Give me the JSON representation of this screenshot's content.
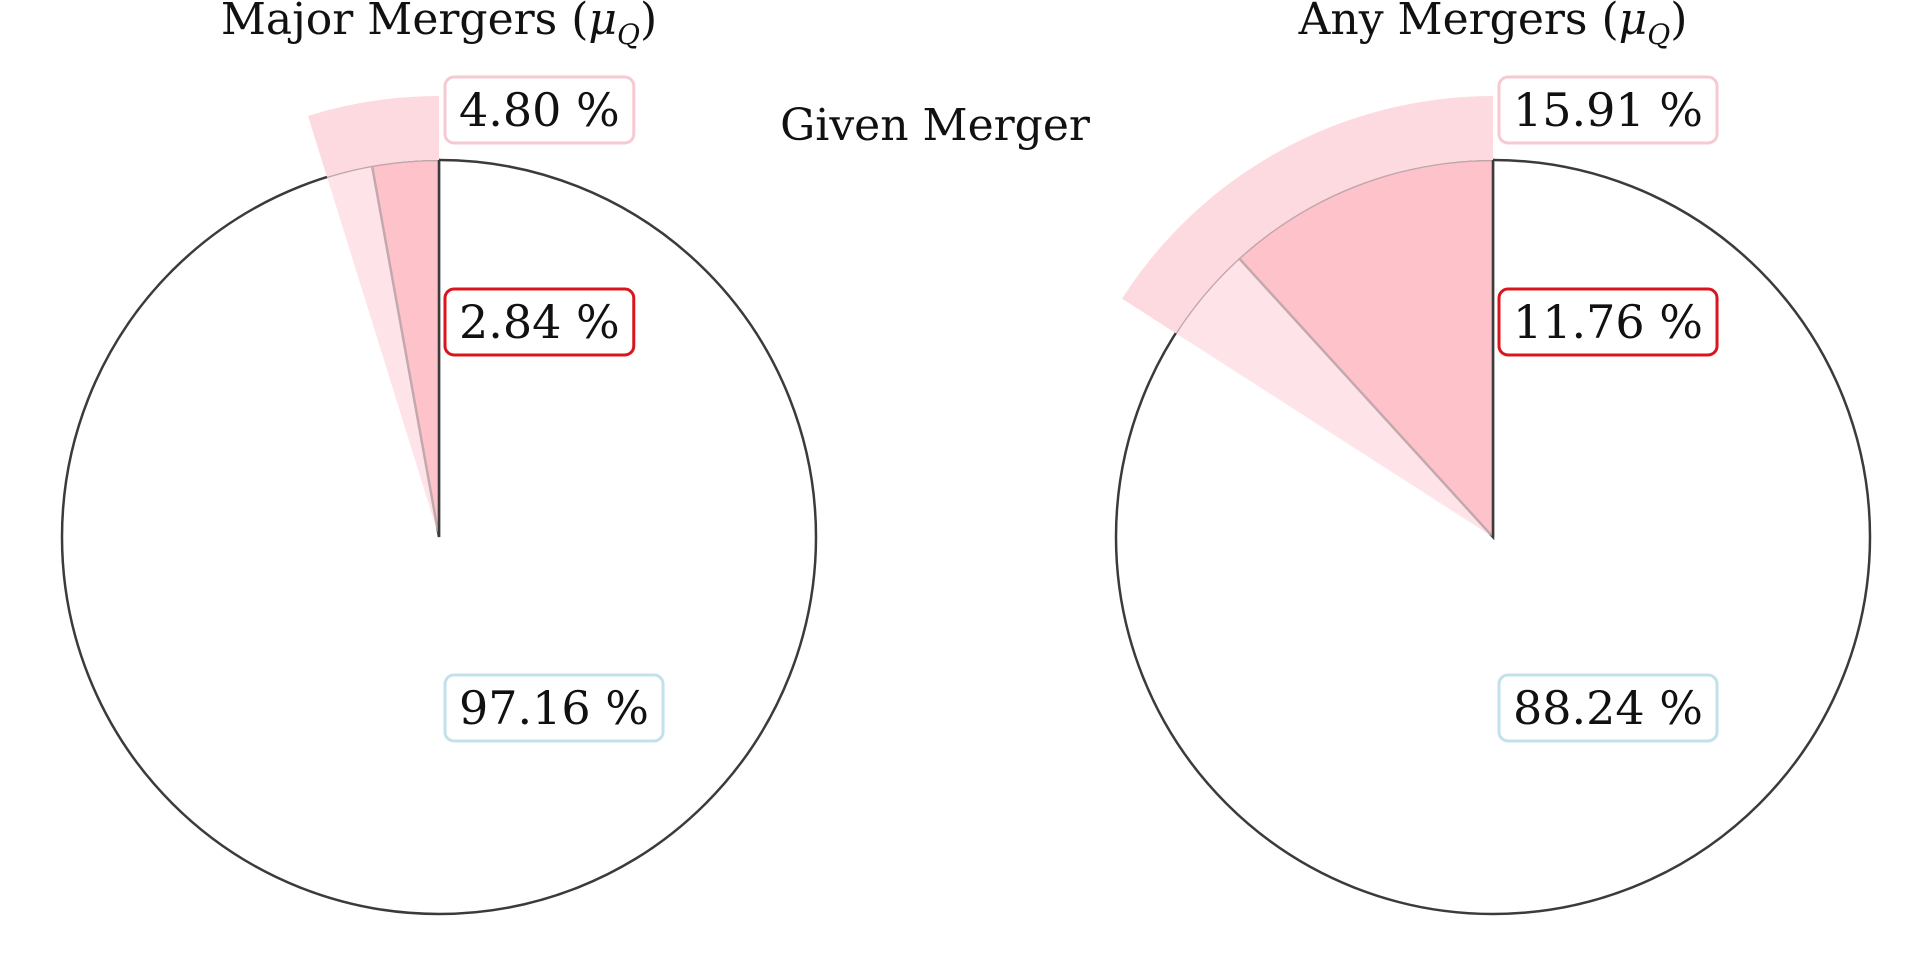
{
  "center_label": "Given Merger",
  "chart_data": [
    {
      "type": "pie",
      "title": "Major Mergers (",
      "title_symbol": "μ",
      "title_subscript": "Q",
      "title_close": ")",
      "slices": [
        {
          "label": "97.16 %",
          "value": 97.16,
          "color": "#c2e1ea"
        },
        {
          "label": "2.84 %",
          "value": 2.84,
          "color": "#ff8f96"
        }
      ],
      "outer_band": {
        "label": "4.80 %",
        "value": 4.8,
        "color": "#fdd9e0"
      },
      "label_box_colors": [
        "#c2e1ea",
        "#d9151d",
        "#f7c9d2"
      ]
    },
    {
      "type": "pie",
      "title": "Any Mergers (",
      "title_symbol": "μ",
      "title_subscript": "Q",
      "title_close": ")",
      "slices": [
        {
          "label": "88.24 %",
          "value": 88.24,
          "color": "#c2e1ea"
        },
        {
          "label": "11.76 %",
          "value": 11.76,
          "color": "#ff8f96"
        }
      ],
      "outer_band": {
        "label": "15.91 %",
        "value": 15.91,
        "color": "#fdd9e0"
      },
      "label_box_colors": [
        "#c2e1ea",
        "#d9151d",
        "#f7c9d2"
      ]
    }
  ]
}
